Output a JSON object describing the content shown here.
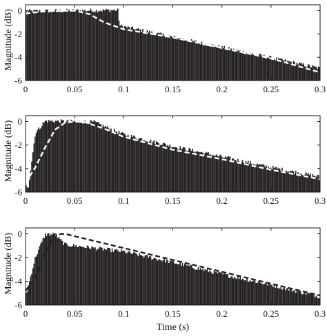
{
  "chart_data": [
    {
      "type": "line",
      "ylabel": "Magnitude (dB)",
      "xlabel": "",
      "xlim": [
        0,
        0.3
      ],
      "ylim": [
        -6,
        0.5
      ],
      "xticks": [
        "0",
        "0.05",
        "0.1",
        "0.15",
        "0.2",
        "0.25",
        "0.3"
      ],
      "yticks": [
        "0",
        "-2",
        "-4",
        "-6"
      ],
      "xtick_values": [
        0,
        0.05,
        0.1,
        0.15,
        0.2,
        0.25,
        0.3
      ],
      "ytick_values": [
        0,
        -2,
        -4,
        -6
      ],
      "envelope": {
        "style": "dashed",
        "color": "#ffffff",
        "x": [
          0,
          0.02,
          0.05,
          0.065,
          0.08,
          0.1,
          0.15,
          0.2,
          0.25,
          0.3
        ],
        "y": [
          -0.25,
          -0.05,
          0,
          -0.3,
          -1.0,
          -1.6,
          -2.3,
          -3.2,
          -4.1,
          -5.3
        ]
      },
      "stems": {
        "color": "#231f20",
        "top_breaks": [
          [
            0,
            -0.05
          ],
          [
            0.094,
            0.05
          ],
          [
            0.096,
            -1.3
          ],
          [
            0.3,
            -4.95
          ]
        ]
      }
    },
    {
      "type": "line",
      "ylabel": "Magnitude (dB)",
      "xlabel": "",
      "xlim": [
        0,
        0.3
      ],
      "ylim": [
        -6,
        0.5
      ],
      "xticks": [
        "0",
        "0.05",
        "0.1",
        "0.15",
        "0.2",
        "0.25",
        "0.3"
      ],
      "yticks": [
        "0",
        "-2",
        "-4",
        "-6"
      ],
      "xtick_values": [
        0,
        0.05,
        0.1,
        0.15,
        0.2,
        0.25,
        0.3
      ],
      "ytick_values": [
        0,
        -2,
        -4,
        -6
      ],
      "envelope": {
        "style": "dashed",
        "color": "#ffffff",
        "x": [
          0,
          0.01,
          0.02,
          0.03,
          0.04,
          0.05,
          0.06,
          0.08,
          0.1,
          0.15,
          0.2,
          0.25,
          0.3
        ],
        "y": [
          -5.2,
          -3.9,
          -2.2,
          -0.7,
          -0.1,
          0,
          -0.05,
          -0.6,
          -1.3,
          -2.4,
          -3.2,
          -4.1,
          -4.9
        ]
      },
      "stems": {
        "color": "#231f20",
        "top_breaks": [
          [
            0.003,
            -5.5
          ],
          [
            0.01,
            -1.0
          ],
          [
            0.02,
            0.05
          ],
          [
            0.07,
            -0.05
          ],
          [
            0.1,
            -1.1
          ],
          [
            0.15,
            -2.1
          ],
          [
            0.2,
            -3.0
          ],
          [
            0.25,
            -3.9
          ],
          [
            0.3,
            -4.7
          ]
        ]
      }
    },
    {
      "type": "line",
      "ylabel": "Magnitude (dB)",
      "xlabel": "Time (s)",
      "xlim": [
        0,
        0.3
      ],
      "ylim": [
        -6,
        0.5
      ],
      "xticks": [
        "0",
        "0.05",
        "0.1",
        "0.15",
        "0.2",
        "0.25",
        "0.3"
      ],
      "yticks": [
        "0",
        "-2",
        "-4",
        "-6"
      ],
      "xtick_values": [
        0,
        0.05,
        0.1,
        0.15,
        0.2,
        0.25,
        0.3
      ],
      "ytick_values": [
        0,
        -2,
        -4,
        -6
      ],
      "envelope": {
        "style": "dashed",
        "color": "#231f20",
        "x": [
          0,
          0.01,
          0.02,
          0.03,
          0.04,
          0.3
        ],
        "y": [
          -4.8,
          -3.7,
          -1.6,
          -0.05,
          0,
          -5.2
        ]
      },
      "stems": {
        "color": "#231f20",
        "top_breaks": [
          [
            0.001,
            -5.0
          ],
          [
            0.01,
            -2.0
          ],
          [
            0.02,
            -0.05
          ],
          [
            0.03,
            -0.05
          ],
          [
            0.04,
            -0.9
          ],
          [
            0.1,
            -1.5
          ],
          [
            0.15,
            -2.4
          ],
          [
            0.2,
            -3.4
          ],
          [
            0.25,
            -4.3
          ],
          [
            0.3,
            -5.3
          ]
        ]
      }
    }
  ]
}
